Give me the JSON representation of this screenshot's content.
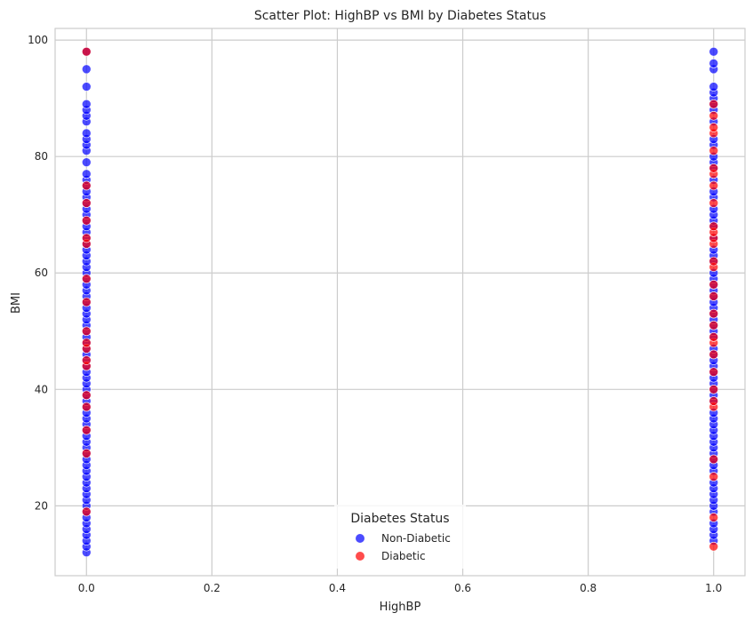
{
  "chart_data": {
    "type": "scatter",
    "title": "Scatter Plot: HighBP vs BMI by Diabetes Status",
    "xlabel": "HighBP",
    "ylabel": "BMI",
    "xlim": [
      -0.05,
      1.05
    ],
    "ylim": [
      8,
      102
    ],
    "x_ticks": [
      0.0,
      0.2,
      0.4,
      0.6,
      0.8,
      1.0
    ],
    "x_tick_labels": [
      "0.0",
      "0.2",
      "0.4",
      "0.6",
      "0.8",
      "1.0"
    ],
    "y_ticks": [
      20,
      40,
      60,
      80,
      100
    ],
    "y_tick_labels": [
      "20",
      "40",
      "60",
      "80",
      "100"
    ],
    "grid": true,
    "legend": {
      "title": "Diabetes Status",
      "placement": "lower center",
      "entries": [
        "Non-Diabetic",
        "Diabetic"
      ]
    },
    "series": [
      {
        "name": "Non-Diabetic",
        "color": "#0000ff",
        "points": [
          [
            0,
            12
          ],
          [
            0,
            13
          ],
          [
            0,
            14
          ],
          [
            0,
            15
          ],
          [
            0,
            16
          ],
          [
            0,
            17
          ],
          [
            0,
            18
          ],
          [
            0,
            19
          ],
          [
            0,
            20
          ],
          [
            0,
            21
          ],
          [
            0,
            22
          ],
          [
            0,
            23
          ],
          [
            0,
            24
          ],
          [
            0,
            25
          ],
          [
            0,
            26
          ],
          [
            0,
            27
          ],
          [
            0,
            28
          ],
          [
            0,
            29
          ],
          [
            0,
            30
          ],
          [
            0,
            31
          ],
          [
            0,
            32
          ],
          [
            0,
            33
          ],
          [
            0,
            34
          ],
          [
            0,
            35
          ],
          [
            0,
            36
          ],
          [
            0,
            37
          ],
          [
            0,
            38
          ],
          [
            0,
            39
          ],
          [
            0,
            40
          ],
          [
            0,
            41
          ],
          [
            0,
            42
          ],
          [
            0,
            43
          ],
          [
            0,
            44
          ],
          [
            0,
            45
          ],
          [
            0,
            46
          ],
          [
            0,
            47
          ],
          [
            0,
            48
          ],
          [
            0,
            49
          ],
          [
            0,
            50
          ],
          [
            0,
            51
          ],
          [
            0,
            52
          ],
          [
            0,
            53
          ],
          [
            0,
            54
          ],
          [
            0,
            55
          ],
          [
            0,
            56
          ],
          [
            0,
            57
          ],
          [
            0,
            58
          ],
          [
            0,
            59
          ],
          [
            0,
            60
          ],
          [
            0,
            61
          ],
          [
            0,
            62
          ],
          [
            0,
            63
          ],
          [
            0,
            64
          ],
          [
            0,
            65
          ],
          [
            0,
            66
          ],
          [
            0,
            67
          ],
          [
            0,
            68
          ],
          [
            0,
            69
          ],
          [
            0,
            70
          ],
          [
            0,
            71
          ],
          [
            0,
            72
          ],
          [
            0,
            73
          ],
          [
            0,
            74
          ],
          [
            0,
            75
          ],
          [
            0,
            76
          ],
          [
            0,
            77
          ],
          [
            0,
            79
          ],
          [
            0,
            81
          ],
          [
            0,
            82
          ],
          [
            0,
            83
          ],
          [
            0,
            84
          ],
          [
            0,
            86
          ],
          [
            0,
            87
          ],
          [
            0,
            88
          ],
          [
            0,
            89
          ],
          [
            0,
            92
          ],
          [
            0,
            95
          ],
          [
            0,
            98
          ],
          [
            1,
            14
          ],
          [
            1,
            15
          ],
          [
            1,
            16
          ],
          [
            1,
            17
          ],
          [
            1,
            19
          ],
          [
            1,
            20
          ],
          [
            1,
            21
          ],
          [
            1,
            22
          ],
          [
            1,
            23
          ],
          [
            1,
            24
          ],
          [
            1,
            26
          ],
          [
            1,
            27
          ],
          [
            1,
            28
          ],
          [
            1,
            29
          ],
          [
            1,
            30
          ],
          [
            1,
            31
          ],
          [
            1,
            32
          ],
          [
            1,
            33
          ],
          [
            1,
            34
          ],
          [
            1,
            35
          ],
          [
            1,
            36
          ],
          [
            1,
            38
          ],
          [
            1,
            39
          ],
          [
            1,
            40
          ],
          [
            1,
            41
          ],
          [
            1,
            42
          ],
          [
            1,
            43
          ],
          [
            1,
            44
          ],
          [
            1,
            45
          ],
          [
            1,
            46
          ],
          [
            1,
            47
          ],
          [
            1,
            49
          ],
          [
            1,
            50
          ],
          [
            1,
            51
          ],
          [
            1,
            52
          ],
          [
            1,
            53
          ],
          [
            1,
            54
          ],
          [
            1,
            55
          ],
          [
            1,
            56
          ],
          [
            1,
            57
          ],
          [
            1,
            58
          ],
          [
            1,
            59
          ],
          [
            1,
            60
          ],
          [
            1,
            62
          ],
          [
            1,
            63
          ],
          [
            1,
            64
          ],
          [
            1,
            66
          ],
          [
            1,
            68
          ],
          [
            1,
            69
          ],
          [
            1,
            70
          ],
          [
            1,
            71
          ],
          [
            1,
            73
          ],
          [
            1,
            74
          ],
          [
            1,
            76
          ],
          [
            1,
            78
          ],
          [
            1,
            79
          ],
          [
            1,
            80
          ],
          [
            1,
            82
          ],
          [
            1,
            83
          ],
          [
            1,
            86
          ],
          [
            1,
            88
          ],
          [
            1,
            89
          ],
          [
            1,
            90
          ],
          [
            1,
            91
          ],
          [
            1,
            92
          ],
          [
            1,
            95
          ],
          [
            1,
            96
          ],
          [
            1,
            98
          ]
        ]
      },
      {
        "name": "Diabetic",
        "color": "#ff0000",
        "points": [
          [
            0,
            19
          ],
          [
            0,
            29
          ],
          [
            0,
            33
          ],
          [
            0,
            37
          ],
          [
            0,
            39
          ],
          [
            0,
            44
          ],
          [
            0,
            45
          ],
          [
            0,
            47
          ],
          [
            0,
            48
          ],
          [
            0,
            50
          ],
          [
            0,
            55
          ],
          [
            0,
            59
          ],
          [
            0,
            65
          ],
          [
            0,
            66
          ],
          [
            0,
            69
          ],
          [
            0,
            72
          ],
          [
            0,
            75
          ],
          [
            0,
            98
          ],
          [
            1,
            13
          ],
          [
            1,
            18
          ],
          [
            1,
            25
          ],
          [
            1,
            28
          ],
          [
            1,
            37
          ],
          [
            1,
            38
          ],
          [
            1,
            40
          ],
          [
            1,
            43
          ],
          [
            1,
            46
          ],
          [
            1,
            48
          ],
          [
            1,
            49
          ],
          [
            1,
            51
          ],
          [
            1,
            53
          ],
          [
            1,
            56
          ],
          [
            1,
            58
          ],
          [
            1,
            61
          ],
          [
            1,
            62
          ],
          [
            1,
            65
          ],
          [
            1,
            66
          ],
          [
            1,
            67
          ],
          [
            1,
            68
          ],
          [
            1,
            72
          ],
          [
            1,
            75
          ],
          [
            1,
            77
          ],
          [
            1,
            78
          ],
          [
            1,
            81
          ],
          [
            1,
            84
          ],
          [
            1,
            85
          ],
          [
            1,
            87
          ],
          [
            1,
            89
          ]
        ]
      }
    ]
  }
}
